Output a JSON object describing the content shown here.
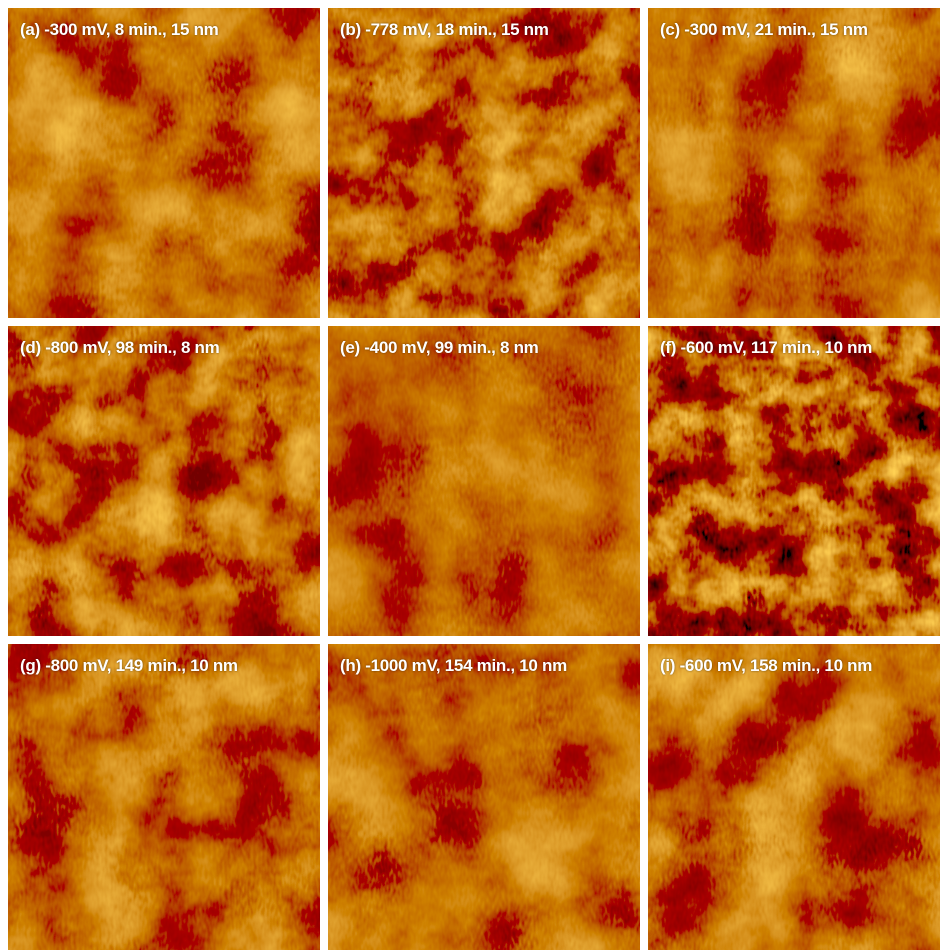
{
  "panels": [
    {
      "label": "(a) -300 mV, 8 min., 15 nm"
    },
    {
      "label": "(b) -778 mV, 18 min., 15 nm"
    },
    {
      "label": "(c) -300 mV, 21 min., 15 nm"
    },
    {
      "label": "(d) -800 mV, 98 min., 8 nm"
    },
    {
      "label": "(e) -400 mV, 99 min., 8 nm"
    },
    {
      "label": "(f) -600 mV, 117 min., 10 nm"
    },
    {
      "label": "(g) -800 mV, 149 min., 10 nm"
    },
    {
      "label": "(h) -1000 mV, 154 min., 10 nm"
    },
    {
      "label": "(i) -600 mV, 158 min., 10 nm"
    }
  ]
}
